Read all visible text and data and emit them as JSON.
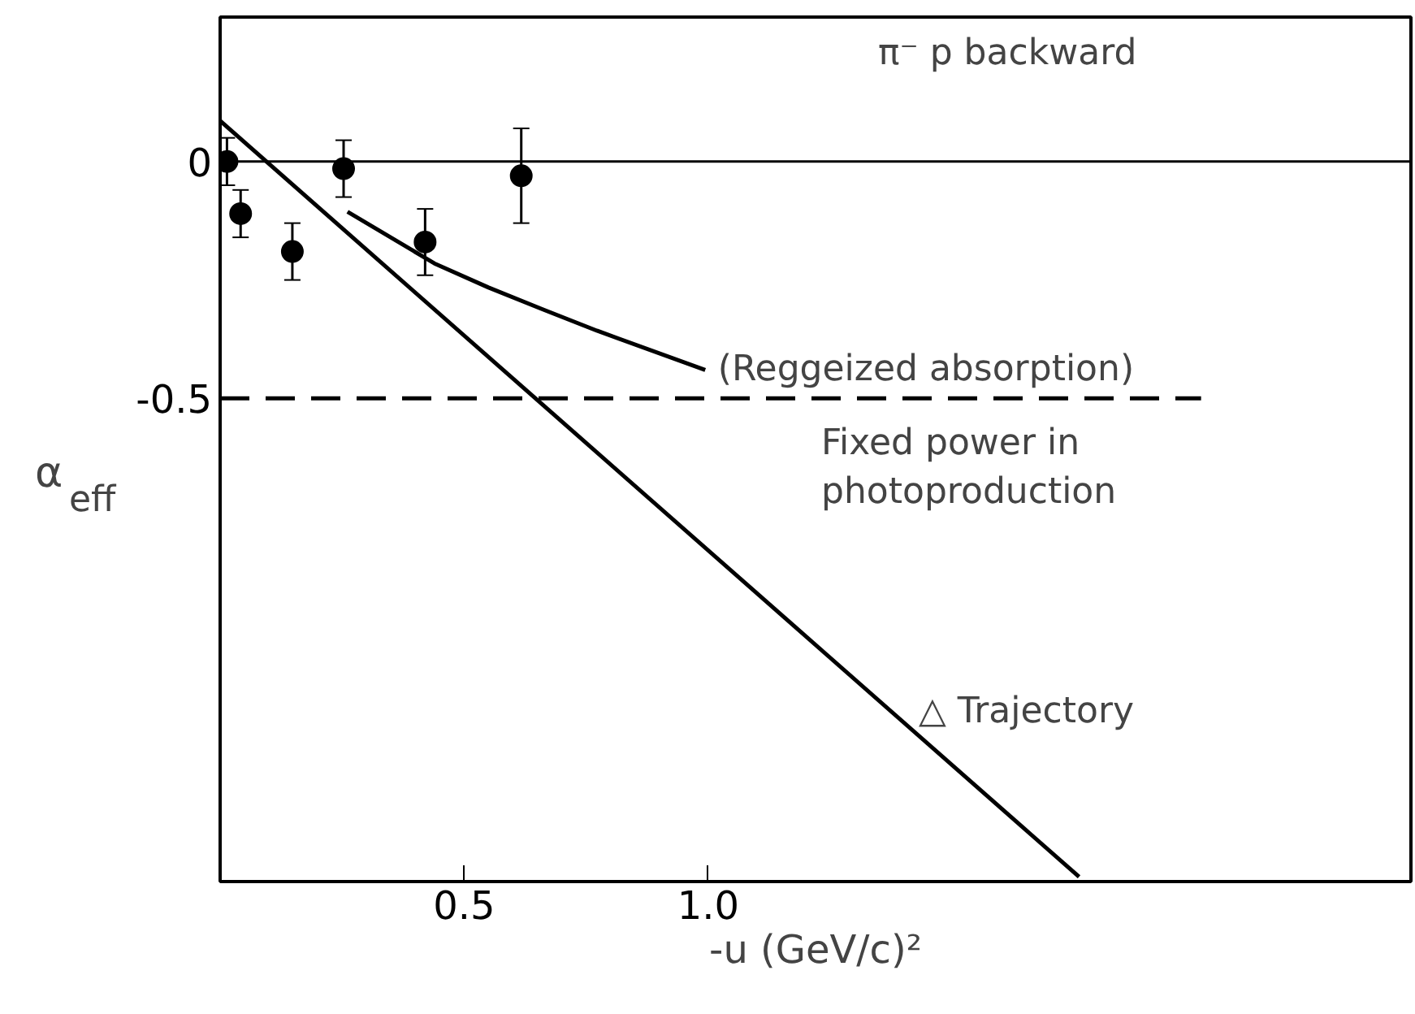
{
  "chart_data": {
    "type": "scatter",
    "xlabel": "-u (GeV/c)²",
    "ylabel": "α$_{eff}$",
    "xlim": [
      0,
      2.44
    ],
    "ylim": [
      -1.52,
      0.305
    ],
    "xticks": [
      0.5,
      {
        "value": 1.0,
        "label": "1.0"
      }
    ],
    "yticks": [
      0,
      -0.5
    ],
    "grid": false,
    "marker": "circle",
    "series": [
      {
        "color": "#000000",
        "x": [
          0.014,
          0.042,
          0.148,
          0.253,
          0.42,
          0.617
        ],
        "values": [
          0.0,
          -0.11,
          -0.19,
          -0.015,
          -0.17,
          -0.03
        ],
        "errors": [
          0.05,
          0.05,
          0.06,
          0.06,
          0.07,
          0.1
        ]
      },
      {
        "type": "line",
        "color": "#000000",
        "line_style": "solid",
        "marker": "none",
        "x": [
          0.261,
          0.439,
          0.55,
          0.661,
          0.772,
          0.994
        ],
        "values": [
          -0.106,
          -0.215,
          -0.266,
          -0.312,
          -0.357,
          -0.44
        ]
      },
      {
        "type": "line",
        "color": "#000000",
        "line_style": "dashed",
        "marker": "none",
        "x": [
          0,
          2.01
        ],
        "values": [
          -0.5,
          -0.5
        ]
      },
      {
        "type": "line",
        "color": "#000000",
        "line_style": "solid",
        "marker": "none",
        "x": [
          0,
          1.76
        ],
        "values": [
          0.086,
          -1.51
        ]
      }
    ],
    "ref_lines": [
      {
        "axis": "y",
        "value": 0,
        "label": null,
        "color": "#000000",
        "line_style": "solid"
      }
    ],
    "annotations": [
      "π⁻ p backward",
      {
        "text": "(Reggeized absorption)",
        "x": 1.0,
        "y": -0.44
      },
      "Fixed power in\nphotoproduction",
      "△ Trajectory"
    ]
  }
}
